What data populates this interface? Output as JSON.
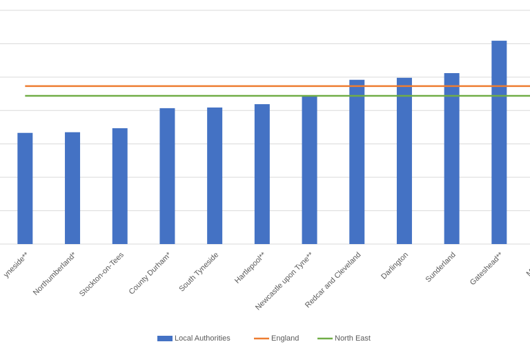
{
  "chart_data": {
    "type": "bar",
    "categories": [
      "yneside**",
      "Northumberland*",
      "Stockton-on-Tees",
      "County Durham*",
      "South Tyneside",
      "Hartlepool**",
      "Newcastle upon Tyne**",
      "Redcar and Cleveland",
      "Darlington",
      "Sunderland",
      "Gateshead**",
      "Middlesb"
    ],
    "series": [
      {
        "name": "Local Authorities",
        "type": "bar",
        "color": "#4472c4",
        "values": [
          3.33,
          3.35,
          3.47,
          4.07,
          4.09,
          4.19,
          4.44,
          4.92,
          4.98,
          5.12,
          6.09,
          null
        ]
      },
      {
        "name": "England",
        "type": "line",
        "color": "#ed7d31",
        "values": [
          4.73,
          4.73,
          4.73,
          4.73,
          4.73,
          4.73,
          4.73,
          4.73,
          4.73,
          4.73,
          4.73,
          4.73
        ]
      },
      {
        "name": "North East",
        "type": "line",
        "color": "#70ad47",
        "values": [
          4.44,
          4.44,
          4.44,
          4.44,
          4.44,
          4.44,
          4.44,
          4.44,
          4.44,
          4.44,
          4.44,
          4.44
        ]
      }
    ],
    "ylim": [
      0,
      7
    ],
    "yticks": [
      0,
      1,
      2,
      3,
      4,
      5,
      6,
      7
    ],
    "grid": true,
    "legend": "bottom"
  }
}
